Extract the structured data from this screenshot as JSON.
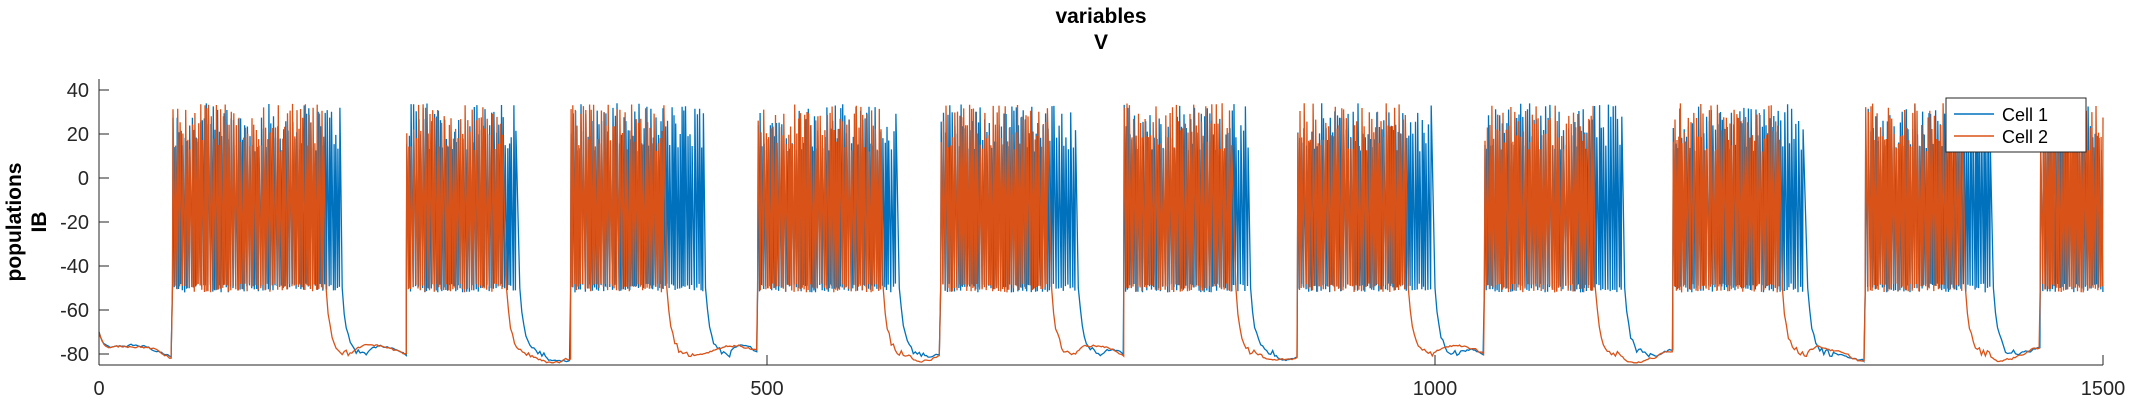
{
  "chart_data": {
    "type": "line",
    "title": [
      "variables",
      "V"
    ],
    "ylabel": [
      "populations",
      "IB"
    ],
    "xlabel": "",
    "xlim": [
      0,
      1500
    ],
    "ylim": [
      -85,
      45
    ],
    "xticks": [
      0,
      500,
      1000,
      1500
    ],
    "yticks": [
      40,
      20,
      0,
      -20,
      -40,
      -60,
      -80
    ],
    "grid": false,
    "legend_position": "top-right",
    "bursts": {
      "cell1": [
        [
          55,
          180
        ],
        [
          230,
          313
        ],
        [
          353,
          452
        ],
        [
          493,
          597
        ],
        [
          630,
          731
        ],
        [
          767,
          860
        ],
        [
          897,
          998
        ],
        [
          1037,
          1140
        ],
        [
          1178,
          1277
        ],
        [
          1322,
          1416
        ],
        [
          1453,
          1500
        ]
      ],
      "cell2": [
        [
          55,
          168
        ],
        [
          230,
          303
        ],
        [
          353,
          423
        ],
        [
          493,
          585
        ],
        [
          630,
          711
        ],
        [
          767,
          849
        ],
        [
          897,
          978
        ],
        [
          1037,
          1118
        ],
        [
          1178,
          1258
        ],
        [
          1322,
          1395
        ],
        [
          1453,
          1500
        ]
      ]
    },
    "burst_plateau": -50,
    "rest_level": -80,
    "series": [
      {
        "name": "Cell 1",
        "color": "#0072BD"
      },
      {
        "name": "Cell 2",
        "color": "#D95319"
      }
    ]
  }
}
